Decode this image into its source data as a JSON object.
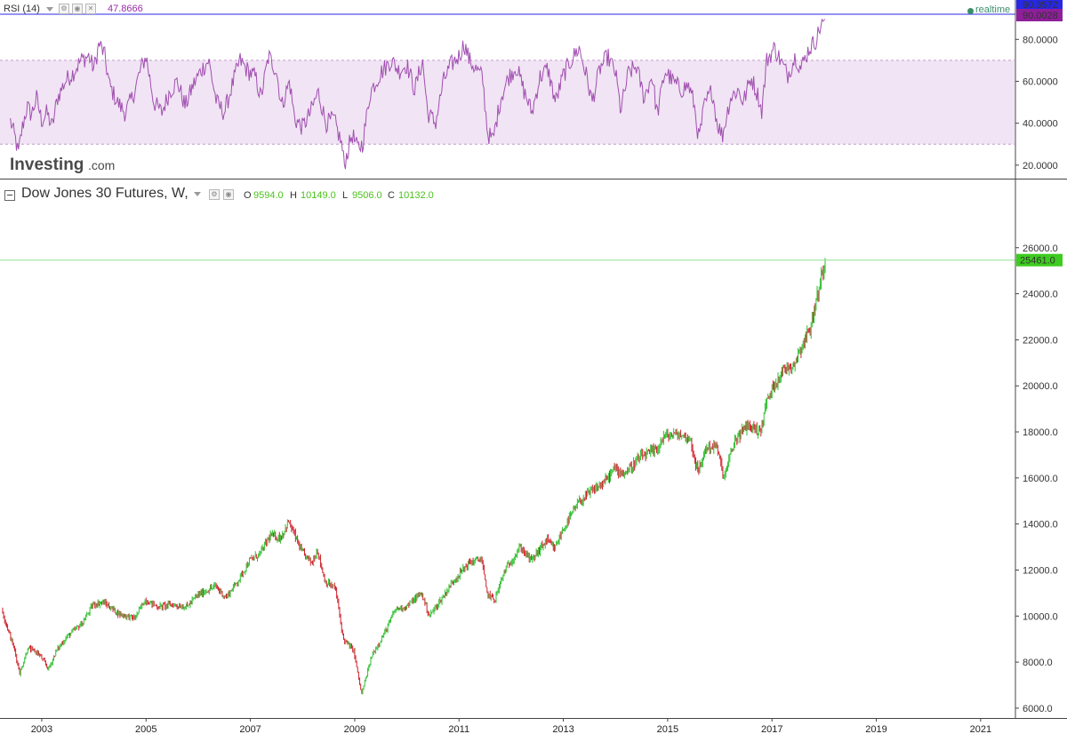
{
  "rsi_header": {
    "label": "RSI (14)",
    "value": "47.8666"
  },
  "realtime_label": "realtime",
  "logo": {
    "brand": "Investing",
    "suffix": ".com"
  },
  "price_header": {
    "title": "Dow Jones 30 Futures, W,",
    "o_label": "O",
    "o_value": "9594.0",
    "h_label": "H",
    "h_value": "10149.0",
    "l_label": "L",
    "l_value": "9506.0",
    "c_label": "C",
    "c_value": "10132.0"
  },
  "price_badge": "25461.0",
  "rsi_badges": [
    "90.3572",
    "90.0028"
  ],
  "colors": {
    "rsi_line": "#a04fb0",
    "rsi_band": "#f1e4f4",
    "up": "#2fbf2f",
    "down": "#d0212b",
    "last_price_line": "#8fe08f",
    "badge_green": "#3dcc1f",
    "badge_purple": "#8e1f9a",
    "badge_blue": "#2727e6",
    "header_value_green": "#4cc21c",
    "rsi_value_purple": "#9a2ea8",
    "realtime_dot": "#3a8f6a"
  },
  "chart_data": [
    {
      "type": "line",
      "name": "RSI (14)",
      "y_ticks": [
        "20.0000",
        "40.0000",
        "60.0000",
        "80.0000"
      ],
      "ylim": [
        14,
        92
      ],
      "band": [
        30,
        70
      ],
      "points": [
        [
          2002.4,
          41
        ],
        [
          2002.5,
          32
        ],
        [
          2002.55,
          25
        ],
        [
          2002.62,
          37
        ],
        [
          2002.72,
          48
        ],
        [
          2002.8,
          44
        ],
        [
          2002.9,
          52
        ],
        [
          2003.0,
          41
        ],
        [
          2003.1,
          45
        ],
        [
          2003.2,
          38
        ],
        [
          2003.3,
          52
        ],
        [
          2003.45,
          60
        ],
        [
          2003.6,
          64
        ],
        [
          2003.75,
          70
        ],
        [
          2003.9,
          72
        ],
        [
          2004.0,
          66
        ],
        [
          2004.1,
          78
        ],
        [
          2004.2,
          73
        ],
        [
          2004.3,
          58
        ],
        [
          2004.45,
          50
        ],
        [
          2004.6,
          45
        ],
        [
          2004.75,
          53
        ],
        [
          2004.9,
          66
        ],
        [
          2005.0,
          72
        ],
        [
          2005.15,
          50
        ],
        [
          2005.3,
          45
        ],
        [
          2005.45,
          55
        ],
        [
          2005.6,
          60
        ],
        [
          2005.75,
          48
        ],
        [
          2005.9,
          58
        ],
        [
          2006.05,
          65
        ],
        [
          2006.2,
          70
        ],
        [
          2006.35,
          50
        ],
        [
          2006.5,
          45
        ],
        [
          2006.65,
          58
        ],
        [
          2006.8,
          70
        ],
        [
          2006.95,
          65
        ],
        [
          2007.1,
          62
        ],
        [
          2007.2,
          52
        ],
        [
          2007.35,
          72
        ],
        [
          2007.5,
          65
        ],
        [
          2007.6,
          48
        ],
        [
          2007.75,
          60
        ],
        [
          2007.85,
          42
        ],
        [
          2008.0,
          38
        ],
        [
          2008.15,
          45
        ],
        [
          2008.3,
          55
        ],
        [
          2008.45,
          40
        ],
        [
          2008.6,
          42
        ],
        [
          2008.75,
          30
        ],
        [
          2008.8,
          20
        ],
        [
          2008.95,
          35
        ],
        [
          2009.05,
          28
        ],
        [
          2009.15,
          30
        ],
        [
          2009.3,
          55
        ],
        [
          2009.5,
          64
        ],
        [
          2009.7,
          70
        ],
        [
          2009.85,
          65
        ],
        [
          2010.0,
          68
        ],
        [
          2010.15,
          56
        ],
        [
          2010.3,
          70
        ],
        [
          2010.4,
          45
        ],
        [
          2010.55,
          40
        ],
        [
          2010.7,
          60
        ],
        [
          2010.85,
          68
        ],
        [
          2011.0,
          72
        ],
        [
          2011.1,
          78
        ],
        [
          2011.2,
          70
        ],
        [
          2011.35,
          65
        ],
        [
          2011.45,
          62
        ],
        [
          2011.55,
          35
        ],
        [
          2011.65,
          32
        ],
        [
          2011.8,
          52
        ],
        [
          2011.95,
          62
        ],
        [
          2012.1,
          67
        ],
        [
          2012.25,
          55
        ],
        [
          2012.4,
          45
        ],
        [
          2012.55,
          62
        ],
        [
          2012.7,
          66
        ],
        [
          2012.85,
          50
        ],
        [
          2013.0,
          63
        ],
        [
          2013.15,
          70
        ],
        [
          2013.3,
          76
        ],
        [
          2013.45,
          62
        ],
        [
          2013.55,
          50
        ],
        [
          2013.7,
          66
        ],
        [
          2013.85,
          72
        ],
        [
          2014.0,
          64
        ],
        [
          2014.1,
          46
        ],
        [
          2014.25,
          64
        ],
        [
          2014.4,
          67
        ],
        [
          2014.55,
          52
        ],
        [
          2014.7,
          63
        ],
        [
          2014.8,
          44
        ],
        [
          2014.95,
          65
        ],
        [
          2015.1,
          60
        ],
        [
          2015.25,
          56
        ],
        [
          2015.4,
          58
        ],
        [
          2015.5,
          50
        ],
        [
          2015.6,
          32
        ],
        [
          2015.7,
          48
        ],
        [
          2015.85,
          56
        ],
        [
          2015.95,
          40
        ],
        [
          2016.05,
          34
        ],
        [
          2016.2,
          52
        ],
        [
          2016.35,
          56
        ],
        [
          2016.45,
          50
        ],
        [
          2016.6,
          62
        ],
        [
          2016.75,
          52
        ],
        [
          2016.8,
          45
        ],
        [
          2016.9,
          70
        ],
        [
          2017.05,
          76
        ],
        [
          2017.2,
          68
        ],
        [
          2017.3,
          63
        ],
        [
          2017.45,
          72
        ],
        [
          2017.55,
          66
        ],
        [
          2017.7,
          75
        ],
        [
          2017.85,
          80
        ],
        [
          2017.95,
          88
        ],
        [
          2018.03,
          90.0028
        ]
      ]
    },
    {
      "type": "candlestick",
      "name": "Dow Jones 30 Futures, W,",
      "y_ticks": [
        "6000.0",
        "8000.0",
        "10000.0",
        "12000.0",
        "14000.0",
        "16000.0",
        "18000.0",
        "20000.0",
        "22000.0",
        "24000.0",
        "26000.0"
      ],
      "x_ticks": [
        "2003",
        "2005",
        "2007",
        "2009",
        "2011",
        "2013",
        "2015",
        "2017",
        "2019",
        "2021"
      ],
      "xlim": [
        2002.2,
        2021.65
      ],
      "ylim": [
        5650,
        27650
      ],
      "last_value": 25461.0,
      "anchors": [
        [
          2002.25,
          10300
        ],
        [
          2002.5,
          8500
        ],
        [
          2002.6,
          7500
        ],
        [
          2002.75,
          8600
        ],
        [
          2002.95,
          8400
        ],
        [
          2003.15,
          7700
        ],
        [
          2003.3,
          8500
        ],
        [
          2003.5,
          9100
        ],
        [
          2003.8,
          9700
        ],
        [
          2004.0,
          10500
        ],
        [
          2004.2,
          10600
        ],
        [
          2004.5,
          10100
        ],
        [
          2004.8,
          9900
        ],
        [
          2005.0,
          10700
        ],
        [
          2005.25,
          10400
        ],
        [
          2005.5,
          10500
        ],
        [
          2005.8,
          10400
        ],
        [
          2006.0,
          10900
        ],
        [
          2006.35,
          11300
        ],
        [
          2006.55,
          10800
        ],
        [
          2006.8,
          11600
        ],
        [
          2007.0,
          12400
        ],
        [
          2007.2,
          12700
        ],
        [
          2007.4,
          13500
        ],
        [
          2007.6,
          13400
        ],
        [
          2007.75,
          14100
        ],
        [
          2007.85,
          13600
        ],
        [
          2008.0,
          12800
        ],
        [
          2008.2,
          12300
        ],
        [
          2008.3,
          12900
        ],
        [
          2008.45,
          11500
        ],
        [
          2008.65,
          11200
        ],
        [
          2008.8,
          9000
        ],
        [
          2009.0,
          8500
        ],
        [
          2009.15,
          6600
        ],
        [
          2009.35,
          8300
        ],
        [
          2009.6,
          9300
        ],
        [
          2009.8,
          10300
        ],
        [
          2010.0,
          10400
        ],
        [
          2010.3,
          11000
        ],
        [
          2010.45,
          10000
        ],
        [
          2010.7,
          10800
        ],
        [
          2010.9,
          11500
        ],
        [
          2011.2,
          12300
        ],
        [
          2011.45,
          12500
        ],
        [
          2011.55,
          11000
        ],
        [
          2011.7,
          10700
        ],
        [
          2011.9,
          12000
        ],
        [
          2012.2,
          13000
        ],
        [
          2012.4,
          12400
        ],
        [
          2012.7,
          13300
        ],
        [
          2012.85,
          12900
        ],
        [
          2013.0,
          13700
        ],
        [
          2013.3,
          14900
        ],
        [
          2013.55,
          15400
        ],
        [
          2013.8,
          15800
        ],
        [
          2014.0,
          16400
        ],
        [
          2014.2,
          16200
        ],
        [
          2014.5,
          16900
        ],
        [
          2014.8,
          17200
        ],
        [
          2014.95,
          17800
        ],
        [
          2015.2,
          17900
        ],
        [
          2015.45,
          17700
        ],
        [
          2015.6,
          16200
        ],
        [
          2015.75,
          17300
        ],
        [
          2015.95,
          17400
        ],
        [
          2016.1,
          16000
        ],
        [
          2016.3,
          17600
        ],
        [
          2016.55,
          18300
        ],
        [
          2016.8,
          18000
        ],
        [
          2016.9,
          19200
        ],
        [
          2017.05,
          20000
        ],
        [
          2017.2,
          20600
        ],
        [
          2017.45,
          21000
        ],
        [
          2017.6,
          21800
        ],
        [
          2017.75,
          22500
        ],
        [
          2017.9,
          24000
        ],
        [
          2018.03,
          25461
        ]
      ]
    }
  ]
}
